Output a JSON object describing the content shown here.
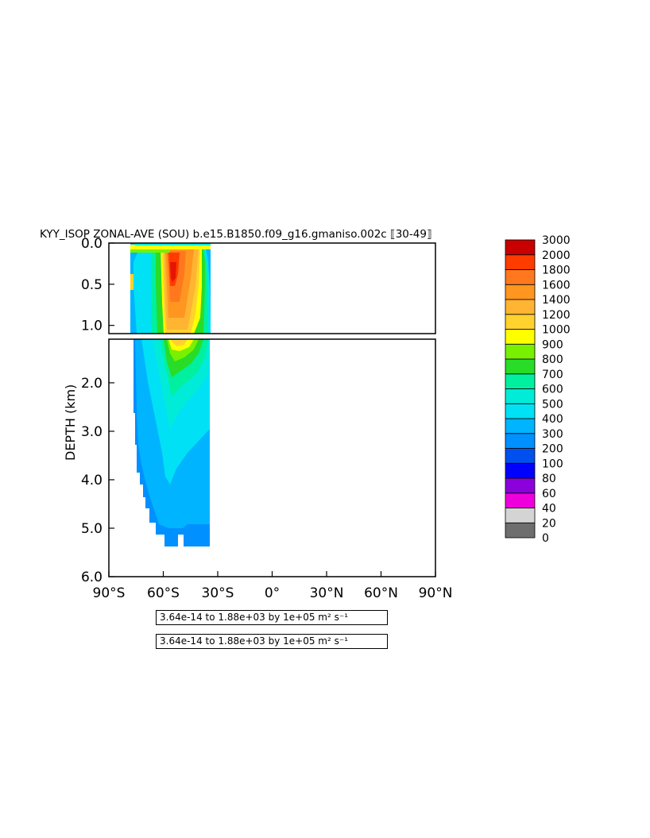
{
  "chart_data": {
    "type": "heatmap",
    "title": "KYY_ISOP ZONAL-AVE (SOU) b.e15.B1850.f09_g16.gmaniso.002c ⟦30-49⟧",
    "xlabel": "",
    "ylabel": "DEPTH (km)",
    "x_ticks": [
      "90°S",
      "60°S",
      "30°S",
      "0°",
      "30°N",
      "60°N",
      "90°N"
    ],
    "x_tick_values": [
      -90,
      -60,
      -30,
      0,
      30,
      60,
      90
    ],
    "xlim": [
      -90,
      90
    ],
    "top_panel": {
      "ylim": [
        0,
        1.1
      ],
      "y_ticks": [
        "0.0",
        "0.5",
        "1.0"
      ],
      "y_tick_values": [
        0,
        0.5,
        1.0
      ]
    },
    "bottom_panel": {
      "ylim": [
        1.1,
        6.0
      ],
      "y_ticks": [
        "2.0",
        "3.0",
        "4.0",
        "5.0",
        "6.0"
      ],
      "y_tick_values": [
        2,
        3,
        4,
        5,
        6
      ]
    },
    "colorbar_levels": [
      "0",
      "20",
      "40",
      "60",
      "80",
      "100",
      "200",
      "300",
      "400",
      "500",
      "600",
      "700",
      "800",
      "900",
      "1000",
      "1200",
      "1400",
      "1600",
      "1800",
      "2000",
      "3000"
    ],
    "colorbar_colors": [
      "#6e6e6e",
      "#d4d4d4",
      "#ee00dc",
      "#8c00dc",
      "#0000ff",
      "#0050f0",
      "#0090ff",
      "#00b4ff",
      "#00e1f5",
      "#00ecd8",
      "#00f0a0",
      "#28dc28",
      "#78f000",
      "#ffff00",
      "#ffd22d",
      "#ffb432",
      "#ff9620",
      "#ff781e",
      "#ff3c00",
      "#e61400",
      "#c80000"
    ],
    "ocean_extent_lat": [
      -78,
      -33
    ],
    "bottom_depth_km": [
      {
        "lat": -78,
        "depth": 1.2
      },
      {
        "lat": -76.5,
        "depth": 2.6
      },
      {
        "lat": -75.5,
        "depth": 3.4
      },
      {
        "lat": -74,
        "depth": 3.9
      },
      {
        "lat": -72,
        "depth": 4.2
      },
      {
        "lat": -70,
        "depth": 4.6
      },
      {
        "lat": -68,
        "depth": 4.9
      },
      {
        "lat": -66,
        "depth": 5.1
      },
      {
        "lat": -62,
        "depth": 5.4
      },
      {
        "lat": -57,
        "depth": 5.4
      },
      {
        "lat": -54,
        "depth": 5.2
      },
      {
        "lat": -52,
        "depth": 5.4
      },
      {
        "lat": -33,
        "depth": 5.4
      }
    ],
    "approx_field_description_values": {
      "max_core_value": 2000,
      "core_lat": -55
    }
  },
  "labels": {
    "range_line_1": "3.64e-14 to 1.88e+03 by 1e+05 m² s⁻¹",
    "range_line_2": "3.64e-14 to 1.88e+03 by 1e+05 m² s⁻¹"
  }
}
